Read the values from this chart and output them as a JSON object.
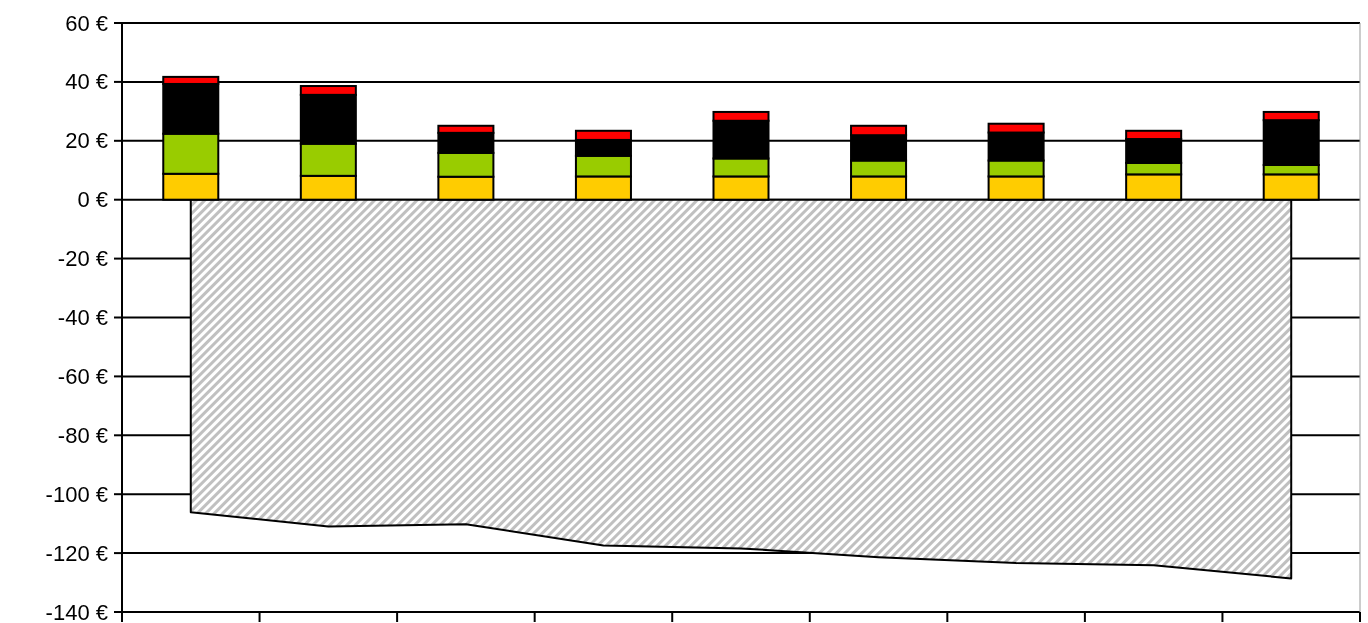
{
  "chart_data": {
    "type": "bar",
    "stacked": true,
    "categories": [
      null,
      null,
      null,
      null,
      null,
      null,
      null,
      null,
      null
    ],
    "series": [
      {
        "color": "#ffcc00",
        "values": [
          8.8,
          8.1,
          7.8,
          7.9,
          7.9,
          7.9,
          7.9,
          8.6,
          8.6
        ]
      },
      {
        "color": "#99cc00",
        "values": [
          13.6,
          10.9,
          8.1,
          7.0,
          6.1,
          5.4,
          5.4,
          3.9,
          3.2
        ]
      },
      {
        "color": "#000000",
        "values": [
          16.9,
          16.6,
          6.8,
          5.4,
          12.8,
          8.6,
          9.5,
          8.1,
          15.2
        ]
      },
      {
        "color": "#ff0000",
        "values": [
          2.4,
          3.0,
          2.4,
          3.1,
          3.0,
          3.2,
          3.0,
          2.8,
          2.8
        ]
      },
      {
        "type": "area",
        "color": "#c0c0c0",
        "values": [
          -106.1,
          -111.0,
          -110.2,
          -117.4,
          -118.4,
          -121.4,
          -123.4,
          -124.1,
          -128.6
        ]
      }
    ],
    "ylim": [
      -140,
      60
    ],
    "yticks": [
      {
        "value": -140,
        "label": "-140 €"
      },
      {
        "value": -120,
        "label": "-120 €"
      },
      {
        "value": -100,
        "label": "-100 €"
      },
      {
        "value": -80,
        "label": "-80 €"
      },
      {
        "value": -60,
        "label": "-60 €"
      },
      {
        "value": -40,
        "label": "-40 €"
      },
      {
        "value": -20,
        "label": "-20 €"
      },
      {
        "value": 0,
        "label": "0 €"
      },
      {
        "value": 20,
        "label": "20 €"
      },
      {
        "value": 40,
        "label": "40 €"
      },
      {
        "value": 60,
        "label": "60 €"
      }
    ],
    "grid": "y"
  }
}
